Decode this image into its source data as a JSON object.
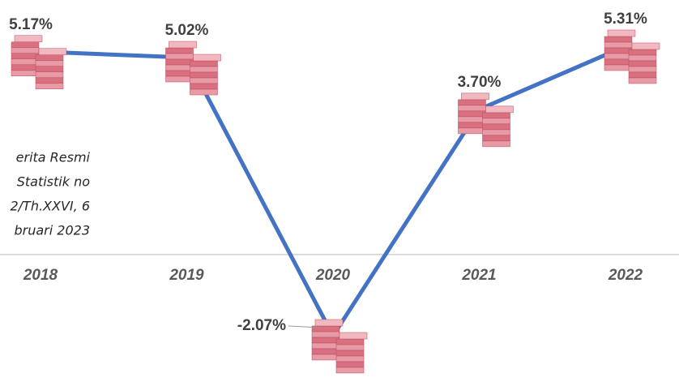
{
  "chart_data": {
    "type": "line",
    "categories": [
      "2018",
      "2019",
      "2020",
      "2021",
      "2022"
    ],
    "values": [
      5.17,
      5.02,
      -2.07,
      3.7,
      5.31
    ],
    "value_labels": [
      "5.17%",
      "5.02%",
      "-2.07%",
      "3.70%",
      "5.31%"
    ],
    "color": "#4472c4",
    "annotation": [
      "erita Resmi",
      "Statistik no",
      "2/Th.XXVI, 6",
      "bruari 2023"
    ]
  }
}
